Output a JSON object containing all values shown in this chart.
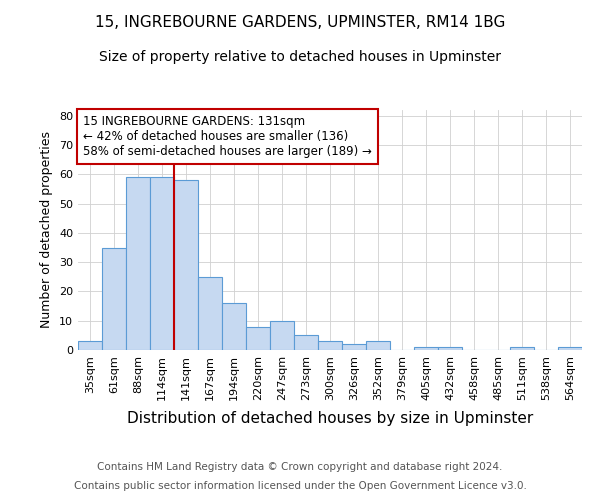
{
  "title1": "15, INGREBOURNE GARDENS, UPMINSTER, RM14 1BG",
  "title2": "Size of property relative to detached houses in Upminster",
  "xlabel": "Distribution of detached houses by size in Upminster",
  "ylabel": "Number of detached properties",
  "categories": [
    "35sqm",
    "61sqm",
    "88sqm",
    "114sqm",
    "141sqm",
    "167sqm",
    "194sqm",
    "220sqm",
    "247sqm",
    "273sqm",
    "300sqm",
    "326sqm",
    "352sqm",
    "379sqm",
    "405sqm",
    "432sqm",
    "458sqm",
    "485sqm",
    "511sqm",
    "538sqm",
    "564sqm"
  ],
  "values": [
    3,
    35,
    59,
    59,
    58,
    25,
    16,
    8,
    10,
    5,
    3,
    2,
    3,
    0,
    1,
    1,
    0,
    0,
    1,
    0,
    1
  ],
  "bar_color": "#c6d9f1",
  "bar_edge_color": "#5b9bd5",
  "vline_x_index": 4,
  "vline_color": "#c00000",
  "annotation_text": "15 INGREBOURNE GARDENS: 131sqm\n← 42% of detached houses are smaller (136)\n58% of semi-detached houses are larger (189) →",
  "annotation_box_color": "#ffffff",
  "annotation_box_edge": "#c00000",
  "ylim": [
    0,
    82
  ],
  "yticks": [
    0,
    10,
    20,
    30,
    40,
    50,
    60,
    70,
    80
  ],
  "footnote1": "Contains HM Land Registry data © Crown copyright and database right 2024.",
  "footnote2": "Contains public sector information licensed under the Open Government Licence v3.0.",
  "title1_fontsize": 11,
  "title2_fontsize": 10,
  "xlabel_fontsize": 11,
  "ylabel_fontsize": 9,
  "tick_fontsize": 8,
  "annotation_fontsize": 8.5,
  "footnote_fontsize": 7.5
}
